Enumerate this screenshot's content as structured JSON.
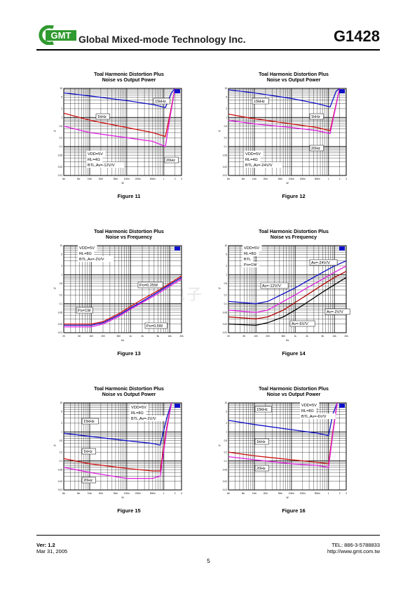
{
  "header": {
    "logo_text": "GMT",
    "company": "Global Mixed-mode Technology Inc.",
    "part_number": "G1428"
  },
  "footer": {
    "version": "Ver: 1.2",
    "date": "Mar 31, 2005",
    "tel": "TEL: 886-3-5788833",
    "url": "http://www.gmt.com.tw",
    "page": "5"
  },
  "colors": {
    "blue": "#1010c8",
    "red": "#d01010",
    "magenta": "#e020e0",
    "black": "#000000",
    "darkred": "#b00000"
  },
  "chart_data": [
    {
      "id": "fig11",
      "type": "line",
      "title": "Toal Harmonic Distortion Plus",
      "subtitle": "Noise vs Output Power",
      "caption": "Figure 11",
      "xscale": "log",
      "yscale": "log",
      "xlabel": "W",
      "ylabel": "%",
      "xlim": [
        0.002,
        3
      ],
      "ylim": [
        0.01,
        10
      ],
      "xticks": [
        "2m",
        "5m",
        "10m",
        "20m",
        "50m",
        "100m",
        "200m",
        "500m",
        "1",
        "2",
        "3"
      ],
      "xtick_values": [
        0.002,
        0.005,
        0.01,
        0.02,
        0.05,
        0.1,
        0.2,
        0.5,
        1,
        2,
        3
      ],
      "yticks": [
        "10",
        "5",
        "2",
        "1",
        "0.5",
        "0.2",
        "0.1",
        "0.05",
        "0.02",
        "0.01"
      ],
      "ytick_values": [
        10,
        5,
        2,
        1,
        0.5,
        0.2,
        0.1,
        0.05,
        0.02,
        0.01
      ],
      "series": [
        {
          "name": "15kHz",
          "color": "blue",
          "points": [
            [
              0.002,
              7
            ],
            [
              0.01,
              5.5
            ],
            [
              0.1,
              3.8
            ],
            [
              0.5,
              2.8
            ],
            [
              1.1,
              2.2
            ],
            [
              1.6,
              7
            ],
            [
              2,
              10
            ]
          ]
        },
        {
          "name": "1kHz",
          "color": "red",
          "points": [
            [
              0.002,
              1.4
            ],
            [
              0.01,
              0.8
            ],
            [
              0.1,
              0.45
            ],
            [
              0.5,
              0.3
            ],
            [
              1.1,
              0.22
            ],
            [
              1.5,
              1.5
            ],
            [
              2,
              10
            ]
          ]
        },
        {
          "name": "20Hz",
          "color": "magenta",
          "points": [
            [
              0.002,
              0.5
            ],
            [
              0.01,
              0.3
            ],
            [
              0.1,
              0.2
            ],
            [
              0.5,
              0.15
            ],
            [
              1.1,
              0.1
            ],
            [
              1.5,
              1.2
            ],
            [
              2,
              10
            ]
          ]
        }
      ],
      "labels": [
        "15kHz",
        "1kHz",
        "20Hz",
        "VDD=5V",
        "RL=4Ω",
        "BTL,Av=-12V/V"
      ]
    },
    {
      "id": "fig12",
      "type": "line",
      "title": "Toal Harmonic Distortion Plus",
      "subtitle": "Noise vs Output Power",
      "caption": "Figure 12",
      "xscale": "log",
      "yscale": "log",
      "xlabel": "W",
      "ylabel": "%",
      "xlim": [
        0.002,
        3
      ],
      "ylim": [
        0.01,
        10
      ],
      "xticks": [
        "2m",
        "5m",
        "10m",
        "20m",
        "50m",
        "100m",
        "200m",
        "500m",
        "1",
        "2",
        "3"
      ],
      "xtick_values": [
        0.002,
        0.005,
        0.01,
        0.02,
        0.05,
        0.1,
        0.2,
        0.5,
        1,
        2,
        3
      ],
      "yticks": [
        "10",
        "5",
        "2",
        "1",
        "0.5",
        "0.2",
        "0.1",
        "0.05",
        "0.02",
        "0.01"
      ],
      "ytick_values": [
        10,
        5,
        2,
        1,
        0.5,
        0.2,
        0.1,
        0.05,
        0.02,
        0.01
      ],
      "series": [
        {
          "name": "15kHz",
          "color": "blue",
          "points": [
            [
              0.002,
              9
            ],
            [
              0.01,
              7
            ],
            [
              0.1,
              4.5
            ],
            [
              0.5,
              3.0
            ],
            [
              1.1,
              2.3
            ],
            [
              1.6,
              8
            ],
            [
              2,
              10
            ]
          ]
        },
        {
          "name": "1kHz",
          "color": "red",
          "points": [
            [
              0.002,
              1.3
            ],
            [
              0.01,
              0.9
            ],
            [
              0.1,
              0.6
            ],
            [
              0.5,
              0.45
            ],
            [
              1.1,
              0.35
            ],
            [
              1.5,
              2
            ],
            [
              2,
              10
            ]
          ]
        },
        {
          "name": "20Hz",
          "color": "magenta",
          "points": [
            [
              0.002,
              0.8
            ],
            [
              0.01,
              0.6
            ],
            [
              0.1,
              0.45
            ],
            [
              0.5,
              0.35
            ],
            [
              1.1,
              0.28
            ],
            [
              1.5,
              1.8
            ],
            [
              2,
              10
            ]
          ]
        }
      ],
      "labels": [
        "15kHz",
        "1kHz",
        "20Hz",
        "VDD=5V",
        "RL=4Ω",
        "BTL,Av=-24V/V"
      ]
    },
    {
      "id": "fig13",
      "type": "line",
      "title": "Toal Harmonic Distortion Plus",
      "subtitle": "Noise vs Frequency",
      "caption": "Figure 13",
      "xscale": "log",
      "yscale": "log",
      "xlabel": "Hz",
      "ylabel": "%",
      "xlim": [
        20,
        20000
      ],
      "ylim": [
        0.01,
        10
      ],
      "xticks": [
        "20",
        "50",
        "100",
        "200",
        "500",
        "1k",
        "2k",
        "5k",
        "10k",
        "20k"
      ],
      "xtick_values": [
        20,
        50,
        100,
        200,
        500,
        1000,
        2000,
        5000,
        10000,
        20000
      ],
      "yticks": [
        "10",
        "5",
        "2",
        "1",
        "0.5",
        "0.2",
        "0.1",
        "0.05",
        "0.02",
        "0.01"
      ],
      "ytick_values": [
        10,
        5,
        2,
        1,
        0.5,
        0.2,
        0.1,
        0.05,
        0.02,
        0.01
      ],
      "series": [
        {
          "name": "Po=1W",
          "color": "blue",
          "points": [
            [
              20,
              0.018
            ],
            [
              100,
              0.018
            ],
            [
              200,
              0.022
            ],
            [
              500,
              0.04
            ],
            [
              1000,
              0.07
            ],
            [
              2000,
              0.12
            ],
            [
              5000,
              0.25
            ],
            [
              10000,
              0.45
            ],
            [
              20000,
              0.8
            ]
          ]
        },
        {
          "name": "Po=0.25W",
          "color": "red",
          "points": [
            [
              20,
              0.02
            ],
            [
              100,
              0.02
            ],
            [
              200,
              0.024
            ],
            [
              500,
              0.045
            ],
            [
              1000,
              0.08
            ],
            [
              2000,
              0.14
            ],
            [
              5000,
              0.28
            ],
            [
              10000,
              0.5
            ],
            [
              20000,
              0.9
            ]
          ]
        },
        {
          "name": "Po=0.5W",
          "color": "magenta",
          "points": [
            [
              20,
              0.016
            ],
            [
              100,
              0.016
            ],
            [
              200,
              0.02
            ],
            [
              500,
              0.036
            ],
            [
              1000,
              0.065
            ],
            [
              2000,
              0.11
            ],
            [
              5000,
              0.22
            ],
            [
              10000,
              0.4
            ],
            [
              20000,
              0.7
            ]
          ]
        }
      ],
      "labels": [
        "VDD=5V",
        "RL=8Ω",
        "BTL,Av=-2V/V",
        "Po=0.25W",
        "Po=1W",
        "Po=0.5W"
      ]
    },
    {
      "id": "fig14",
      "type": "line",
      "title": "Toal Harmonic Distortion Plus",
      "subtitle": "Noise vs Frequency",
      "caption": "Figure 14",
      "xscale": "log",
      "yscale": "log",
      "xlabel": "Hz",
      "ylabel": "%",
      "xlim": [
        20,
        20000
      ],
      "ylim": [
        0.01,
        10
      ],
      "xticks": [
        "20",
        "50",
        "100",
        "200",
        "500",
        "1k",
        "2k",
        "5k",
        "10k",
        "20k"
      ],
      "xtick_values": [
        20,
        50,
        100,
        200,
        500,
        1000,
        2000,
        5000,
        10000,
        20000
      ],
      "yticks": [
        "10",
        "5",
        "2",
        "1",
        "0.5",
        "0.2",
        "0.1",
        "0.05",
        "0.02",
        "0.01"
      ],
      "ytick_values": [
        10,
        5,
        2,
        1,
        0.5,
        0.2,
        0.1,
        0.05,
        0.02,
        0.01
      ],
      "series": [
        {
          "name": "Av=-24V/V",
          "color": "blue",
          "points": [
            [
              20,
              0.12
            ],
            [
              100,
              0.1
            ],
            [
              200,
              0.12
            ],
            [
              500,
              0.22
            ],
            [
              1000,
              0.35
            ],
            [
              2000,
              0.6
            ],
            [
              5000,
              1.2
            ],
            [
              10000,
              2.0
            ],
            [
              20000,
              3.0
            ]
          ]
        },
        {
          "name": "Av=-12V/V",
          "color": "magenta",
          "points": [
            [
              20,
              0.06
            ],
            [
              100,
              0.05
            ],
            [
              200,
              0.06
            ],
            [
              500,
              0.12
            ],
            [
              1000,
              0.2
            ],
            [
              2000,
              0.35
            ],
            [
              5000,
              0.7
            ],
            [
              10000,
              1.2
            ],
            [
              20000,
              2.0
            ]
          ]
        },
        {
          "name": "Av=-6V/V",
          "color": "darkred",
          "points": [
            [
              20,
              0.035
            ],
            [
              100,
              0.03
            ],
            [
              200,
              0.035
            ],
            [
              500,
              0.06
            ],
            [
              1000,
              0.11
            ],
            [
              2000,
              0.2
            ],
            [
              5000,
              0.45
            ],
            [
              10000,
              0.8
            ],
            [
              20000,
              1.3
            ]
          ]
        },
        {
          "name": "Av=-2V/V",
          "color": "black",
          "points": [
            [
              20,
              0.02
            ],
            [
              100,
              0.018
            ],
            [
              200,
              0.022
            ],
            [
              500,
              0.035
            ],
            [
              1000,
              0.06
            ],
            [
              2000,
              0.11
            ],
            [
              5000,
              0.25
            ],
            [
              10000,
              0.45
            ],
            [
              20000,
              0.8
            ]
          ]
        }
      ],
      "labels": [
        "VDD=5V",
        "RL=8Ω",
        "BTL",
        "Po=1W",
        "Av=-24V/V",
        "Av=-12V/V",
        "Av=-2V/V",
        "Av=-6V/V"
      ]
    },
    {
      "id": "fig15",
      "type": "line",
      "title": "Toal Harmonic Distortion Plus",
      "subtitle": "Noise vs Output Power",
      "caption": "Figure 15",
      "xscale": "log",
      "yscale": "log",
      "xlabel": "W",
      "ylabel": "%",
      "xlim": [
        0.002,
        3
      ],
      "ylim": [
        0.01,
        10
      ],
      "xticks": [
        "2m",
        "5m",
        "10m",
        "20m",
        "50m",
        "100m",
        "200m",
        "500m",
        "1",
        "2",
        "3"
      ],
      "xtick_values": [
        0.002,
        0.005,
        0.01,
        0.02,
        0.05,
        0.1,
        0.2,
        0.5,
        1,
        2,
        3
      ],
      "yticks": [
        "10",
        "5",
        "2",
        "1",
        "0.5",
        "0.2",
        "0.1",
        "0.05",
        "0.02",
        "0.01"
      ],
      "ytick_values": [
        10,
        5,
        2,
        1,
        0.5,
        0.2,
        0.1,
        0.05,
        0.02,
        0.01
      ],
      "series": [
        {
          "name": "15kHz",
          "color": "blue",
          "points": [
            [
              0.002,
              0.9
            ],
            [
              0.01,
              0.7
            ],
            [
              0.1,
              0.5
            ],
            [
              0.5,
              0.4
            ],
            [
              0.8,
              0.35
            ],
            [
              1.2,
              3
            ],
            [
              1.6,
              10
            ]
          ]
        },
        {
          "name": "1kHz",
          "color": "red",
          "points": [
            [
              0.002,
              0.12
            ],
            [
              0.01,
              0.08
            ],
            [
              0.1,
              0.055
            ],
            [
              0.5,
              0.045
            ],
            [
              0.8,
              0.045
            ],
            [
              1.2,
              1.5
            ],
            [
              1.6,
              10
            ]
          ]
        },
        {
          "name": "20Hz",
          "color": "magenta",
          "points": [
            [
              0.002,
              0.06
            ],
            [
              0.01,
              0.04
            ],
            [
              0.1,
              0.025
            ],
            [
              0.5,
              0.025
            ],
            [
              0.8,
              0.03
            ],
            [
              1.2,
              1.2
            ],
            [
              1.6,
              10
            ]
          ]
        }
      ],
      "labels": [
        "15kHz",
        "1kHz",
        "20Hz",
        "VDD=5V",
        "RL=8Ω",
        "BTL,Av=-2V/V"
      ]
    },
    {
      "id": "fig16",
      "type": "line",
      "title": "Toal Harmonic Distortion Plus",
      "subtitle": "Noise vs Output Power",
      "caption": "Figure 16",
      "xscale": "log",
      "yscale": "log",
      "xlabel": "W",
      "ylabel": "%",
      "xlim": [
        0.002,
        3
      ],
      "ylim": [
        0.01,
        10
      ],
      "xticks": [
        "2m",
        "5m",
        "10m",
        "20m",
        "50m",
        "100m",
        "200m",
        "500m",
        "1",
        "2",
        "3"
      ],
      "xtick_values": [
        0.002,
        0.005,
        0.01,
        0.02,
        0.05,
        0.1,
        0.2,
        0.5,
        1,
        2,
        3
      ],
      "yticks": [
        "10",
        "5",
        "2",
        "1",
        "0.5",
        "0.2",
        "0.1",
        "0.05",
        "0.02",
        "0.01"
      ],
      "ytick_values": [
        10,
        5,
        2,
        1,
        0.5,
        0.2,
        0.1,
        0.05,
        0.02,
        0.01
      ],
      "series": [
        {
          "name": "15kHz",
          "color": "blue",
          "points": [
            [
              0.002,
              2.5
            ],
            [
              0.01,
              1.8
            ],
            [
              0.1,
              1.2
            ],
            [
              0.5,
              0.9
            ],
            [
              1.0,
              0.75
            ],
            [
              1.3,
              4
            ],
            [
              1.7,
              10
            ]
          ]
        },
        {
          "name": "1kHz",
          "color": "red",
          "points": [
            [
              0.002,
              0.2
            ],
            [
              0.01,
              0.15
            ],
            [
              0.1,
              0.11
            ],
            [
              0.5,
              0.09
            ],
            [
              1.0,
              0.08
            ],
            [
              1.3,
              1
            ],
            [
              1.7,
              10
            ]
          ]
        },
        {
          "name": "20Hz",
          "color": "magenta",
          "points": [
            [
              0.002,
              0.14
            ],
            [
              0.01,
              0.11
            ],
            [
              0.1,
              0.08
            ],
            [
              0.5,
              0.07
            ],
            [
              1.0,
              0.06
            ],
            [
              1.3,
              0.8
            ],
            [
              1.7,
              10
            ]
          ]
        }
      ],
      "labels": [
        "15kHz",
        "1kHz",
        "20Hz",
        "VDD=5V",
        "RL=8Ω",
        "BTL,Av=-6V/V"
      ]
    }
  ]
}
